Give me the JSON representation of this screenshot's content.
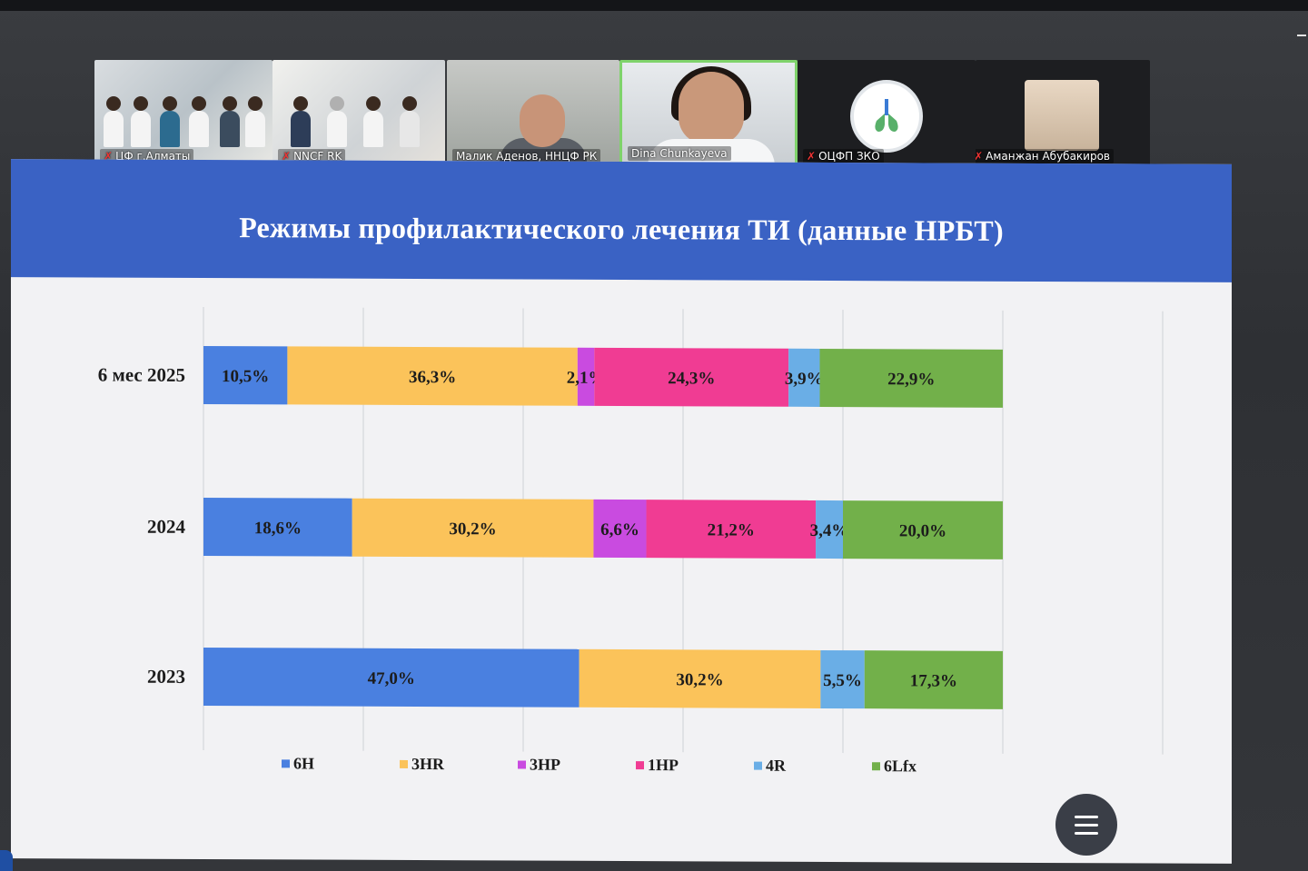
{
  "meeting": {
    "participants": [
      {
        "name": "ЦФ г.Алматы",
        "muted": true
      },
      {
        "name": "NNCF RK",
        "muted": true
      },
      {
        "name": "Малик Аденов, ННЦФ РК",
        "muted": false
      },
      {
        "name": "Dina Chunkayeva",
        "muted": false,
        "active_speaker": true
      },
      {
        "name": "ОЦФП ЗКО",
        "muted": true
      },
      {
        "name": "Аманжан Абубакиров",
        "muted": true
      }
    ]
  },
  "slide": {
    "title": "Режимы профилактического лечения ТИ (данные НРБТ)"
  },
  "chart_data": {
    "type": "bar",
    "orientation": "horizontal",
    "stacked": true,
    "title": "Режимы профилактического лечения ТИ (данные НРБТ)",
    "categories": [
      "6 мес 2025",
      "2024",
      "2023"
    ],
    "xlim": [
      0,
      100
    ],
    "grid": true,
    "legend_position": "bottom",
    "series": [
      {
        "name": "6H",
        "color": "#4a80e0",
        "values": [
          10.5,
          18.6,
          47.0
        ],
        "labels": [
          "10,5%",
          "18,6%",
          "47,0%"
        ]
      },
      {
        "name": "3HR",
        "color": "#fbc35a",
        "values": [
          36.3,
          30.2,
          30.2
        ],
        "labels": [
          "36,3%",
          "30,2%",
          "30,2%"
        ]
      },
      {
        "name": "3HP",
        "color": "#c94be0",
        "values": [
          2.1,
          6.6,
          0
        ],
        "labels": [
          "2,1%",
          "6,6%",
          ""
        ]
      },
      {
        "name": "1HP",
        "color": "#f03c93",
        "values": [
          24.3,
          21.2,
          0
        ],
        "labels": [
          "24,3%",
          "21,2%",
          ""
        ]
      },
      {
        "name": "4R",
        "color": "#6aaee6",
        "values": [
          3.9,
          3.4,
          5.5
        ],
        "labels": [
          "3,9%",
          "3,4%",
          "5,5%"
        ]
      },
      {
        "name": "6Lfx",
        "color": "#72b04a",
        "values": [
          22.9,
          20.0,
          17.3
        ],
        "labels": [
          "22,9%",
          "20,0%",
          "17,3%"
        ]
      }
    ]
  }
}
